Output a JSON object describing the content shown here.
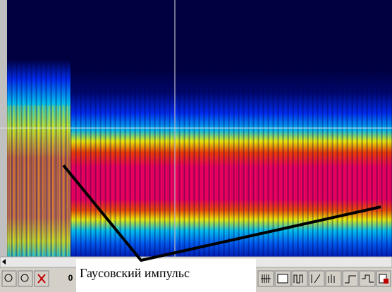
{
  "annotation": "Гаусовский импульс",
  "toolbar": {
    "position": "0"
  }
}
